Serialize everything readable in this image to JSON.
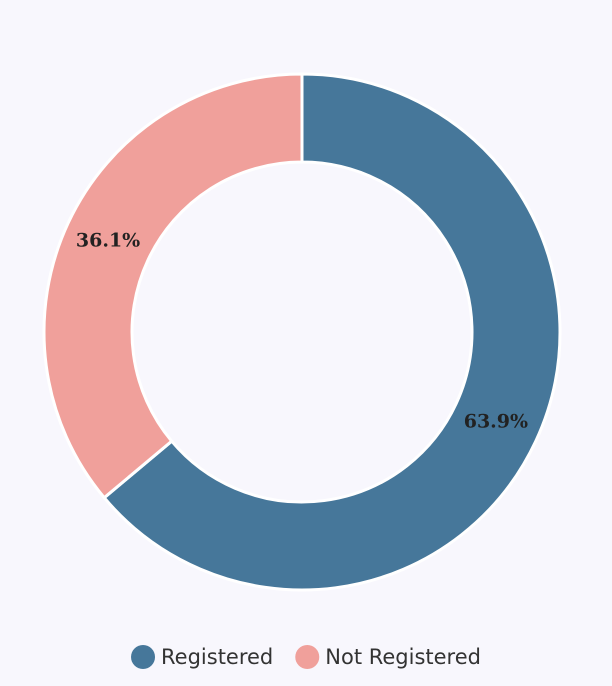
{
  "chart_data": {
    "type": "donut",
    "categories": [
      "Registered",
      "Not Registered"
    ],
    "values": [
      63.9,
      36.1
    ],
    "value_labels": [
      "63.9%",
      "36.1%"
    ],
    "colors": [
      "#46779a",
      "#f0a09b"
    ],
    "legend": "bottom"
  }
}
